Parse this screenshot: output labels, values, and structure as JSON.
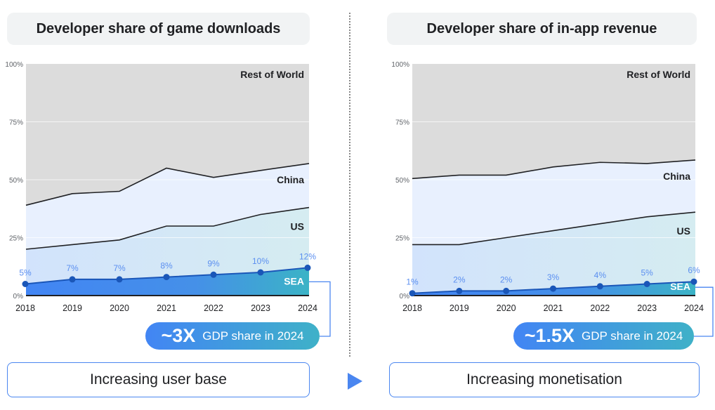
{
  "chart_data": [
    {
      "type": "area",
      "stacked": true,
      "title": "Developer share of game downloads",
      "categories": [
        "2018",
        "2019",
        "2020",
        "2021",
        "2022",
        "2023",
        "2024"
      ],
      "ylim": [
        0,
        100
      ],
      "yticks": [
        "0%",
        "25%",
        "50%",
        "75%",
        "100%"
      ],
      "cumulative_series": [
        {
          "name": "SEA",
          "values": [
            5,
            7,
            7,
            8,
            9,
            10,
            12
          ],
          "labels": [
            "5%",
            "7%",
            "7%",
            "8%",
            "9%",
            "10%",
            "12%"
          ]
        },
        {
          "name": "US",
          "values": [
            20,
            22,
            24,
            30,
            30,
            35,
            38
          ]
        },
        {
          "name": "China",
          "values": [
            39,
            44,
            45,
            55,
            51,
            54,
            57
          ]
        },
        {
          "name": "Rest of World",
          "values": [
            100,
            100,
            100,
            100,
            100,
            100,
            100
          ]
        }
      ],
      "callout": {
        "big": "~3X",
        "text": "GDP share in 2024"
      },
      "footer": "Increasing user base"
    },
    {
      "type": "area",
      "stacked": true,
      "title": "Developer share of in-app revenue",
      "categories": [
        "2018",
        "2019",
        "2020",
        "2021",
        "2022",
        "2023",
        "2024"
      ],
      "ylim": [
        0,
        100
      ],
      "yticks": [
        "0%",
        "25%",
        "50%",
        "75%",
        "100%"
      ],
      "cumulative_series": [
        {
          "name": "SEA",
          "values": [
            1,
            2,
            2,
            3,
            4,
            5,
            6
          ],
          "labels": [
            "1%",
            "2%",
            "2%",
            "3%",
            "4%",
            "5%",
            "6%"
          ]
        },
        {
          "name": "US",
          "values": [
            22,
            22,
            25,
            28,
            31,
            34,
            36
          ]
        },
        {
          "name": "China",
          "values": [
            50.5,
            52,
            52,
            55.5,
            57.5,
            57,
            58.5
          ]
        },
        {
          "name": "Rest of World",
          "values": [
            100,
            100,
            100,
            100,
            100,
            100,
            100
          ]
        }
      ],
      "callout": {
        "big": "~1.5X",
        "text": "GDP share in 2024"
      },
      "footer": "Increasing monetisation"
    }
  ],
  "colors": {
    "row": "#dcdcdc",
    "china": "#e8f0fe",
    "us": "#d4e6f8",
    "sea_start": "#4285f4",
    "sea_end": "#3bb3c6",
    "dot": "#1a56b8",
    "label": "#5b8ff0"
  }
}
